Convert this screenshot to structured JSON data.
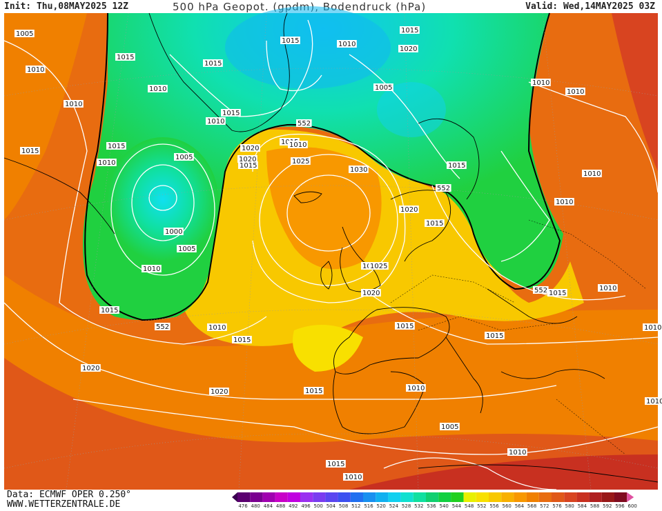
{
  "header": {
    "init": "Init: Thu,08MAY2025 12Z",
    "title": "500 hPa Geopot. (gpdm), Bodendruck (hPa)",
    "valid": "Valid: Wed,14MAY2025 03Z"
  },
  "footer": {
    "source": "Data: ECMWF OPER 0.250°",
    "website": "WWW.WETTERZENTRALE.DE"
  },
  "legend": {
    "ticks": [
      "476",
      "480",
      "484",
      "488",
      "492",
      "496",
      "500",
      "504",
      "508",
      "512",
      "516",
      "520",
      "524",
      "528",
      "532",
      "536",
      "540",
      "544",
      "548",
      "552",
      "556",
      "560",
      "564",
      "568",
      "572",
      "576",
      "580",
      "584",
      "588",
      "592",
      "596",
      "600"
    ],
    "colors": [
      "#3a0050",
      "#5a0070",
      "#7a0090",
      "#a000b0",
      "#c800c8",
      "#c000e0",
      "#9a30f0",
      "#7a3cf0",
      "#5a46f0",
      "#3c50f0",
      "#2070f0",
      "#1890f0",
      "#10b0f0",
      "#10d0f0",
      "#10e0d0",
      "#10e0a0",
      "#10d070",
      "#10d040",
      "#20d020",
      "#e8f000",
      "#f8e000",
      "#f8c800",
      "#f8b000",
      "#f89800",
      "#f08000",
      "#e86c10",
      "#e05818",
      "#d84420",
      "#c83020",
      "#b02020",
      "#981818",
      "#800c20",
      "#e050a0"
    ]
  },
  "isobar_labels": [
    {
      "t": "1005"
    },
    {
      "t": "1010"
    },
    {
      "t": "1010"
    },
    {
      "t": "1015"
    },
    {
      "t": "1015"
    },
    {
      "t": "1015"
    },
    {
      "t": "1010"
    },
    {
      "t": "1015"
    },
    {
      "t": "1020"
    },
    {
      "t": "1015"
    },
    {
      "t": "1010"
    },
    {
      "t": "1015"
    },
    {
      "t": "1010"
    },
    {
      "t": "1005"
    },
    {
      "t": "1020"
    },
    {
      "t": "1015"
    },
    {
      "t": "1010"
    },
    {
      "t": "1005"
    },
    {
      "t": "1000"
    },
    {
      "t": "1005"
    },
    {
      "t": "1010"
    },
    {
      "t": "1015"
    },
    {
      "t": "552"
    },
    {
      "t": "1010"
    },
    {
      "t": "1015"
    },
    {
      "t": "1020"
    },
    {
      "t": "1015"
    },
    {
      "t": "1020"
    },
    {
      "t": "1025"
    },
    {
      "t": "1030"
    },
    {
      "t": "1020"
    },
    {
      "t": "1015"
    },
    {
      "t": "552"
    },
    {
      "t": "1010"
    },
    {
      "t": "1010"
    },
    {
      "t": "1025"
    },
    {
      "t": "1020"
    },
    {
      "t": "552"
    },
    {
      "t": "1015"
    },
    {
      "t": "1010"
    },
    {
      "t": "1015"
    },
    {
      "t": "1015"
    },
    {
      "t": "1020"
    },
    {
      "t": "1015"
    },
    {
      "t": "1010"
    },
    {
      "t": "1020"
    },
    {
      "t": "1015"
    },
    {
      "t": "1010"
    },
    {
      "t": "1005"
    },
    {
      "t": "1010"
    },
    {
      "t": "1015"
    },
    {
      "t": "1010"
    },
    {
      "t": "1010"
    },
    {
      "t": "552"
    },
    {
      "t": "1015"
    },
    {
      "t": "1010"
    },
    {
      "t": "1010"
    },
    {
      "t": "1010"
    }
  ]
}
